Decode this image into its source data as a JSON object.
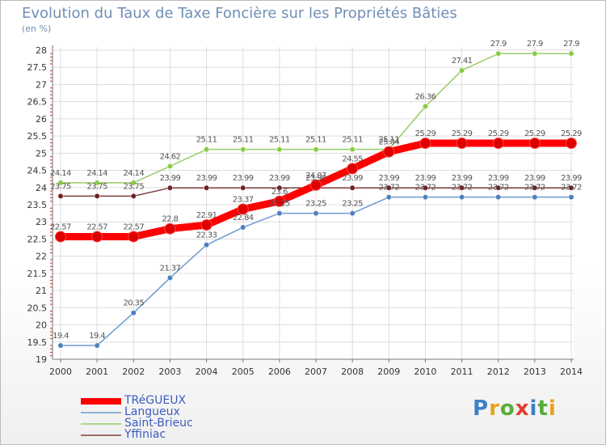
{
  "title": "Evolution du Taux de Taxe Foncière sur les Propriétés Bâties",
  "unit_label": "(en %)",
  "logo_text": "Proxiti",
  "chart_data": {
    "type": "line",
    "title": "Evolution du Taux de Taxe Foncière sur les Propriétés Bâties",
    "ylabel": "(en %)",
    "xlabel": "",
    "x": [
      "2000",
      "2001",
      "2002",
      "2003",
      "2004",
      "2005",
      "2006",
      "2007",
      "2008",
      "2009",
      "2010",
      "2011",
      "2012",
      "2013",
      "2014"
    ],
    "ylim": [
      19,
      28
    ],
    "y_ticks": [
      "19",
      "19.5",
      "20",
      "20.5",
      "21",
      "21.5",
      "22",
      "22.5",
      "23",
      "23.5",
      "24",
      "24.5",
      "25",
      "25.5",
      "26",
      "26.5",
      "27",
      "27.5",
      "28"
    ],
    "legend_position": "bottom-left",
    "series": [
      {
        "name": "TRéGUEUX",
        "color": "#ff0000",
        "values": [
          22.57,
          22.57,
          22.57,
          22.8,
          22.91,
          23.37,
          23.6,
          24.07,
          24.55,
          25.04,
          25.29,
          25.29,
          25.29,
          25.29,
          25.29
        ]
      },
      {
        "name": "Langueux",
        "color": "#6c9bcf",
        "values": [
          19.4,
          19.4,
          20.35,
          21.37,
          22.33,
          22.84,
          23.25,
          23.25,
          23.25,
          23.72,
          23.72,
          23.72,
          23.72,
          23.72,
          23.72
        ]
      },
      {
        "name": "Saint-Brieuc",
        "color": "#99cc66",
        "values": [
          24.14,
          24.14,
          24.14,
          24.62,
          25.11,
          25.11,
          25.11,
          25.11,
          25.11,
          25.11,
          26.36,
          27.41,
          27.9,
          27.9,
          27.9
        ]
      },
      {
        "name": "Yffiniac",
        "color": "#804040",
        "values": [
          23.75,
          23.75,
          23.75,
          23.99,
          23.99,
          23.99,
          23.99,
          23.99,
          23.99,
          23.99,
          23.99,
          23.99,
          23.99,
          23.99,
          23.99
        ]
      }
    ]
  }
}
